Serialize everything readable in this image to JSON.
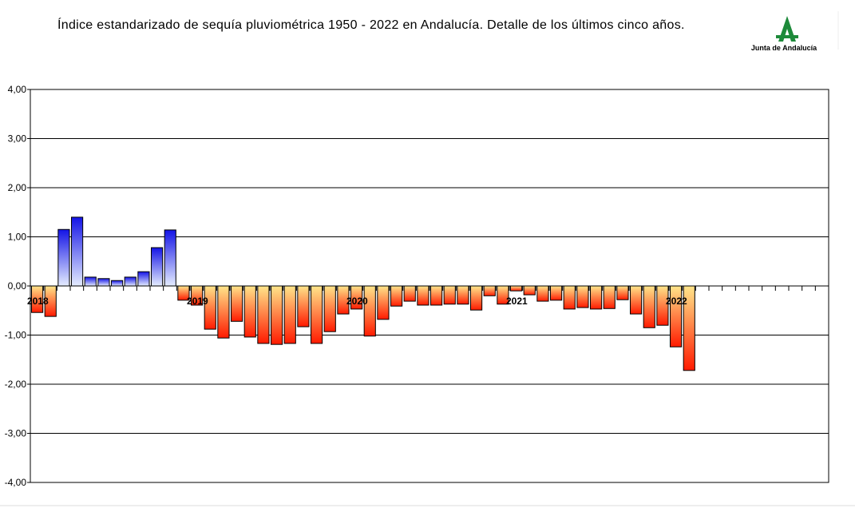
{
  "chart_data": {
    "type": "bar",
    "title": "Índice estandarizado de sequía pluviométrica 1950 - 2022 en Andalucía. Detalle de los últimos cinco años.",
    "logo_text": "Junta de Andalucía",
    "categories": [
      "2018",
      null,
      null,
      null,
      null,
      null,
      null,
      null,
      null,
      null,
      null,
      null,
      "2019",
      null,
      null,
      null,
      null,
      null,
      null,
      null,
      null,
      null,
      null,
      null,
      "2020",
      null,
      null,
      null,
      null,
      null,
      null,
      null,
      null,
      null,
      null,
      null,
      "2021",
      null,
      null,
      null,
      null,
      null,
      null,
      null,
      null,
      null,
      null,
      null,
      "2022",
      null,
      null,
      null,
      null,
      null,
      null,
      null,
      null,
      null,
      null,
      null
    ],
    "values": [
      -0.54,
      -0.62,
      1.15,
      1.4,
      0.18,
      0.15,
      0.11,
      0.18,
      0.29,
      0.78,
      1.14,
      -0.29,
      -0.39,
      -0.88,
      -1.06,
      -0.72,
      -1.04,
      -1.17,
      -1.19,
      -1.17,
      -0.83,
      -1.17,
      -0.93,
      -0.57,
      -0.47,
      -1.02,
      -0.68,
      -0.41,
      -0.31,
      -0.39,
      -0.39,
      -0.37,
      -0.37,
      -0.49,
      -0.2,
      -0.37,
      -0.1,
      -0.18,
      -0.31,
      -0.29,
      -0.47,
      -0.44,
      -0.47,
      -0.46,
      -0.28,
      -0.57,
      -0.85,
      -0.8,
      -1.24,
      -1.72,
      null,
      null,
      null,
      null,
      null,
      null,
      null,
      null,
      null,
      null
    ],
    "positive_colors": [
      "#1414e6",
      "#e4ecff"
    ],
    "negative_colors": [
      "#ff1a00",
      "#ffe58a"
    ],
    "ylim": [
      -4,
      4
    ],
    "yticks": [
      {
        "value": -4,
        "label": "-4,00"
      },
      {
        "value": -3,
        "label": "-3,00"
      },
      {
        "value": -2,
        "label": "-2,00"
      },
      {
        "value": -1,
        "label": "-1,00"
      },
      {
        "value": 0,
        "label": "0,00"
      },
      {
        "value": 1,
        "label": "1,00"
      },
      {
        "value": 2,
        "label": "2,00"
      },
      {
        "value": 3,
        "label": "3,00"
      },
      {
        "value": 4,
        "label": "4,00"
      }
    ],
    "grid": true
  }
}
